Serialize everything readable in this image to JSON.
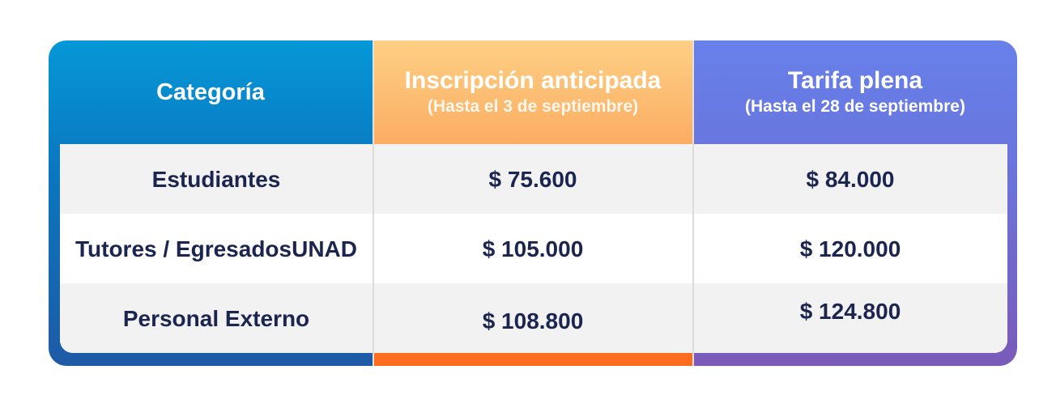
{
  "table": {
    "headers": [
      {
        "title": "Categoría",
        "subtitle": ""
      },
      {
        "title": "Inscripción anticipada",
        "subtitle": "(Hasta el 3 de septiembre)"
      },
      {
        "title": "Tarifa plena",
        "subtitle": "(Hasta el 28 de septiembre)"
      }
    ],
    "rows": [
      {
        "category": "Estudiantes",
        "early": "$ 75.600",
        "full": "$ 84.000"
      },
      {
        "category": "Tutores / Egresados UNAD",
        "early": "$ 105.000",
        "full": "$ 120.000"
      },
      {
        "category": "Personal Externo",
        "early": "$ 108.800",
        "full": "$ 124.800"
      }
    ]
  },
  "colors": {
    "blue": "#0a77c0",
    "orange": "#fc8a3c",
    "purple": "#6a74dc",
    "text": "#1b2550"
  }
}
